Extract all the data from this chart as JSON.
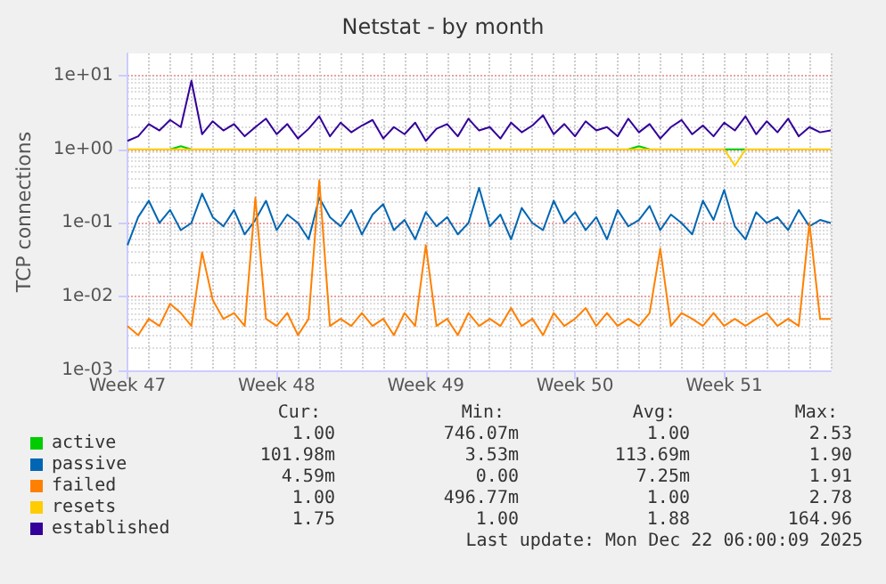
{
  "chart_data": {
    "type": "line",
    "title": "Netstat - by month",
    "ylabel": "TCP connections",
    "log": "y",
    "grid": true,
    "legend": "bottom left",
    "marker": "none",
    "line_style": "solid",
    "categories": [
      "Week 47",
      null,
      null,
      null,
      null,
      null,
      null,
      null,
      null,
      null,
      null,
      null,
      null,
      null,
      "Week 48",
      null,
      null,
      null,
      null,
      null,
      null,
      null,
      null,
      null,
      null,
      null,
      null,
      null,
      "Week 49",
      null,
      null,
      null,
      null,
      null,
      null,
      null,
      null,
      null,
      null,
      null,
      null,
      null,
      "Week 50",
      null,
      null,
      null,
      null,
      null,
      null,
      null,
      null,
      null,
      null,
      null,
      null,
      null,
      "Week 51",
      null,
      null,
      null,
      null,
      null,
      null,
      null,
      null,
      null,
      null
    ],
    "ylim": [
      0.001,
      20
    ],
    "yticks": [
      {
        "value": 0.001,
        "label": "1e-03"
      },
      {
        "value": 0.01,
        "label": "1e-02"
      },
      {
        "value": 0.1,
        "label": "1e-01"
      },
      {
        "value": 1,
        "label": "1e+00"
      },
      {
        "value": 10,
        "label": "1e+01"
      }
    ],
    "series": [
      {
        "name": "active",
        "color": "#00cc00",
        "values": [
          null,
          null,
          null,
          null,
          1,
          1.1,
          1,
          null,
          null,
          null,
          null,
          null,
          null,
          null,
          null,
          null,
          null,
          null,
          null,
          null,
          null,
          null,
          null,
          null,
          null,
          null,
          null,
          null,
          null,
          null,
          null,
          null,
          null,
          null,
          null,
          null,
          null,
          null,
          null,
          null,
          null,
          null,
          null,
          null,
          null,
          null,
          null,
          1,
          1.1,
          1,
          null,
          null,
          null,
          null,
          null,
          null,
          1,
          1,
          1,
          null,
          null,
          null,
          null,
          null,
          null,
          null,
          null
        ]
      },
      {
        "name": "passive",
        "color": "#0066b3",
        "values": [
          0.05,
          0.12,
          0.2,
          0.1,
          0.15,
          0.08,
          0.1,
          0.25,
          0.12,
          0.09,
          0.15,
          0.07,
          0.11,
          0.2,
          0.08,
          0.13,
          0.1,
          0.06,
          0.22,
          0.12,
          0.09,
          0.15,
          0.07,
          0.13,
          0.18,
          0.08,
          0.11,
          0.06,
          0.14,
          0.09,
          0.12,
          0.07,
          0.1,
          0.3,
          0.09,
          0.13,
          0.06,
          0.16,
          0.1,
          0.08,
          0.2,
          0.1,
          0.14,
          0.08,
          0.12,
          0.06,
          0.15,
          0.09,
          0.11,
          0.17,
          0.08,
          0.13,
          0.1,
          0.07,
          0.2,
          0.11,
          0.28,
          0.09,
          0.06,
          0.14,
          0.1,
          0.12,
          0.08,
          0.15,
          0.09,
          0.11,
          0.1
        ]
      },
      {
        "name": "failed",
        "color": "#ff8000",
        "values": [
          0.004,
          0.003,
          0.005,
          0.004,
          0.008,
          0.006,
          0.004,
          0.04,
          0.009,
          0.005,
          0.006,
          0.004,
          0.22,
          0.005,
          0.004,
          0.006,
          0.003,
          0.005,
          0.38,
          0.004,
          0.005,
          0.004,
          0.006,
          0.004,
          0.005,
          0.003,
          0.006,
          0.004,
          0.05,
          0.004,
          0.005,
          0.003,
          0.006,
          0.004,
          0.005,
          0.004,
          0.007,
          0.004,
          0.005,
          0.003,
          0.006,
          0.004,
          0.005,
          0.007,
          0.004,
          0.006,
          0.004,
          0.005,
          0.004,
          0.006,
          0.045,
          0.004,
          0.006,
          0.005,
          0.004,
          0.006,
          0.004,
          0.005,
          0.004,
          0.005,
          0.006,
          0.004,
          0.005,
          0.004,
          0.1,
          0.005,
          0.005
        ]
      },
      {
        "name": "resets",
        "color": "#ffcc00",
        "values": [
          1,
          1,
          1,
          1,
          1,
          1,
          1,
          1,
          1,
          1,
          1,
          1,
          1,
          1,
          1,
          1,
          1,
          1,
          1,
          1,
          1,
          1,
          1,
          1,
          1,
          1,
          1,
          1,
          1,
          1,
          1,
          1,
          1,
          1,
          1,
          1,
          1,
          1,
          1,
          1,
          1,
          1,
          1,
          1,
          1,
          1,
          1,
          1,
          1,
          1,
          1,
          1,
          1,
          1,
          1,
          1,
          1,
          0.6,
          1,
          1,
          1,
          1,
          1,
          1,
          1,
          1,
          1
        ]
      },
      {
        "name": "established",
        "color": "#330099",
        "values": [
          1.3,
          1.5,
          2.2,
          1.8,
          2.5,
          2.0,
          8.5,
          1.6,
          2.4,
          1.8,
          2.2,
          1.5,
          2.0,
          2.6,
          1.6,
          2.2,
          1.4,
          1.9,
          2.8,
          1.5,
          2.3,
          1.7,
          2.1,
          2.5,
          1.4,
          2.0,
          1.6,
          2.3,
          1.3,
          1.9,
          2.2,
          1.5,
          2.6,
          1.8,
          2.0,
          1.4,
          2.3,
          1.7,
          2.1,
          2.9,
          1.6,
          2.2,
          1.5,
          2.4,
          1.8,
          2.0,
          1.5,
          2.6,
          1.7,
          2.2,
          1.4,
          2.0,
          2.5,
          1.6,
          2.1,
          1.5,
          2.3,
          1.8,
          2.8,
          1.6,
          2.4,
          1.7,
          2.6,
          1.5,
          2.0,
          1.7,
          1.8
        ]
      }
    ],
    "annotations": [
      "Cur:",
      "Min:",
      "Avg:",
      "Max:",
      "1.00",
      "746.07m",
      "1.00",
      "2.53",
      "101.98m",
      "3.53m",
      "113.69m",
      "1.90",
      "4.59m",
      "0.00",
      "7.25m",
      "1.91",
      "1.00",
      "496.77m",
      "1.00",
      "2.78",
      "1.75",
      "1.00",
      "1.88",
      "164.96",
      "Last update: Mon Dec 22 06:00:09 2025"
    ]
  }
}
